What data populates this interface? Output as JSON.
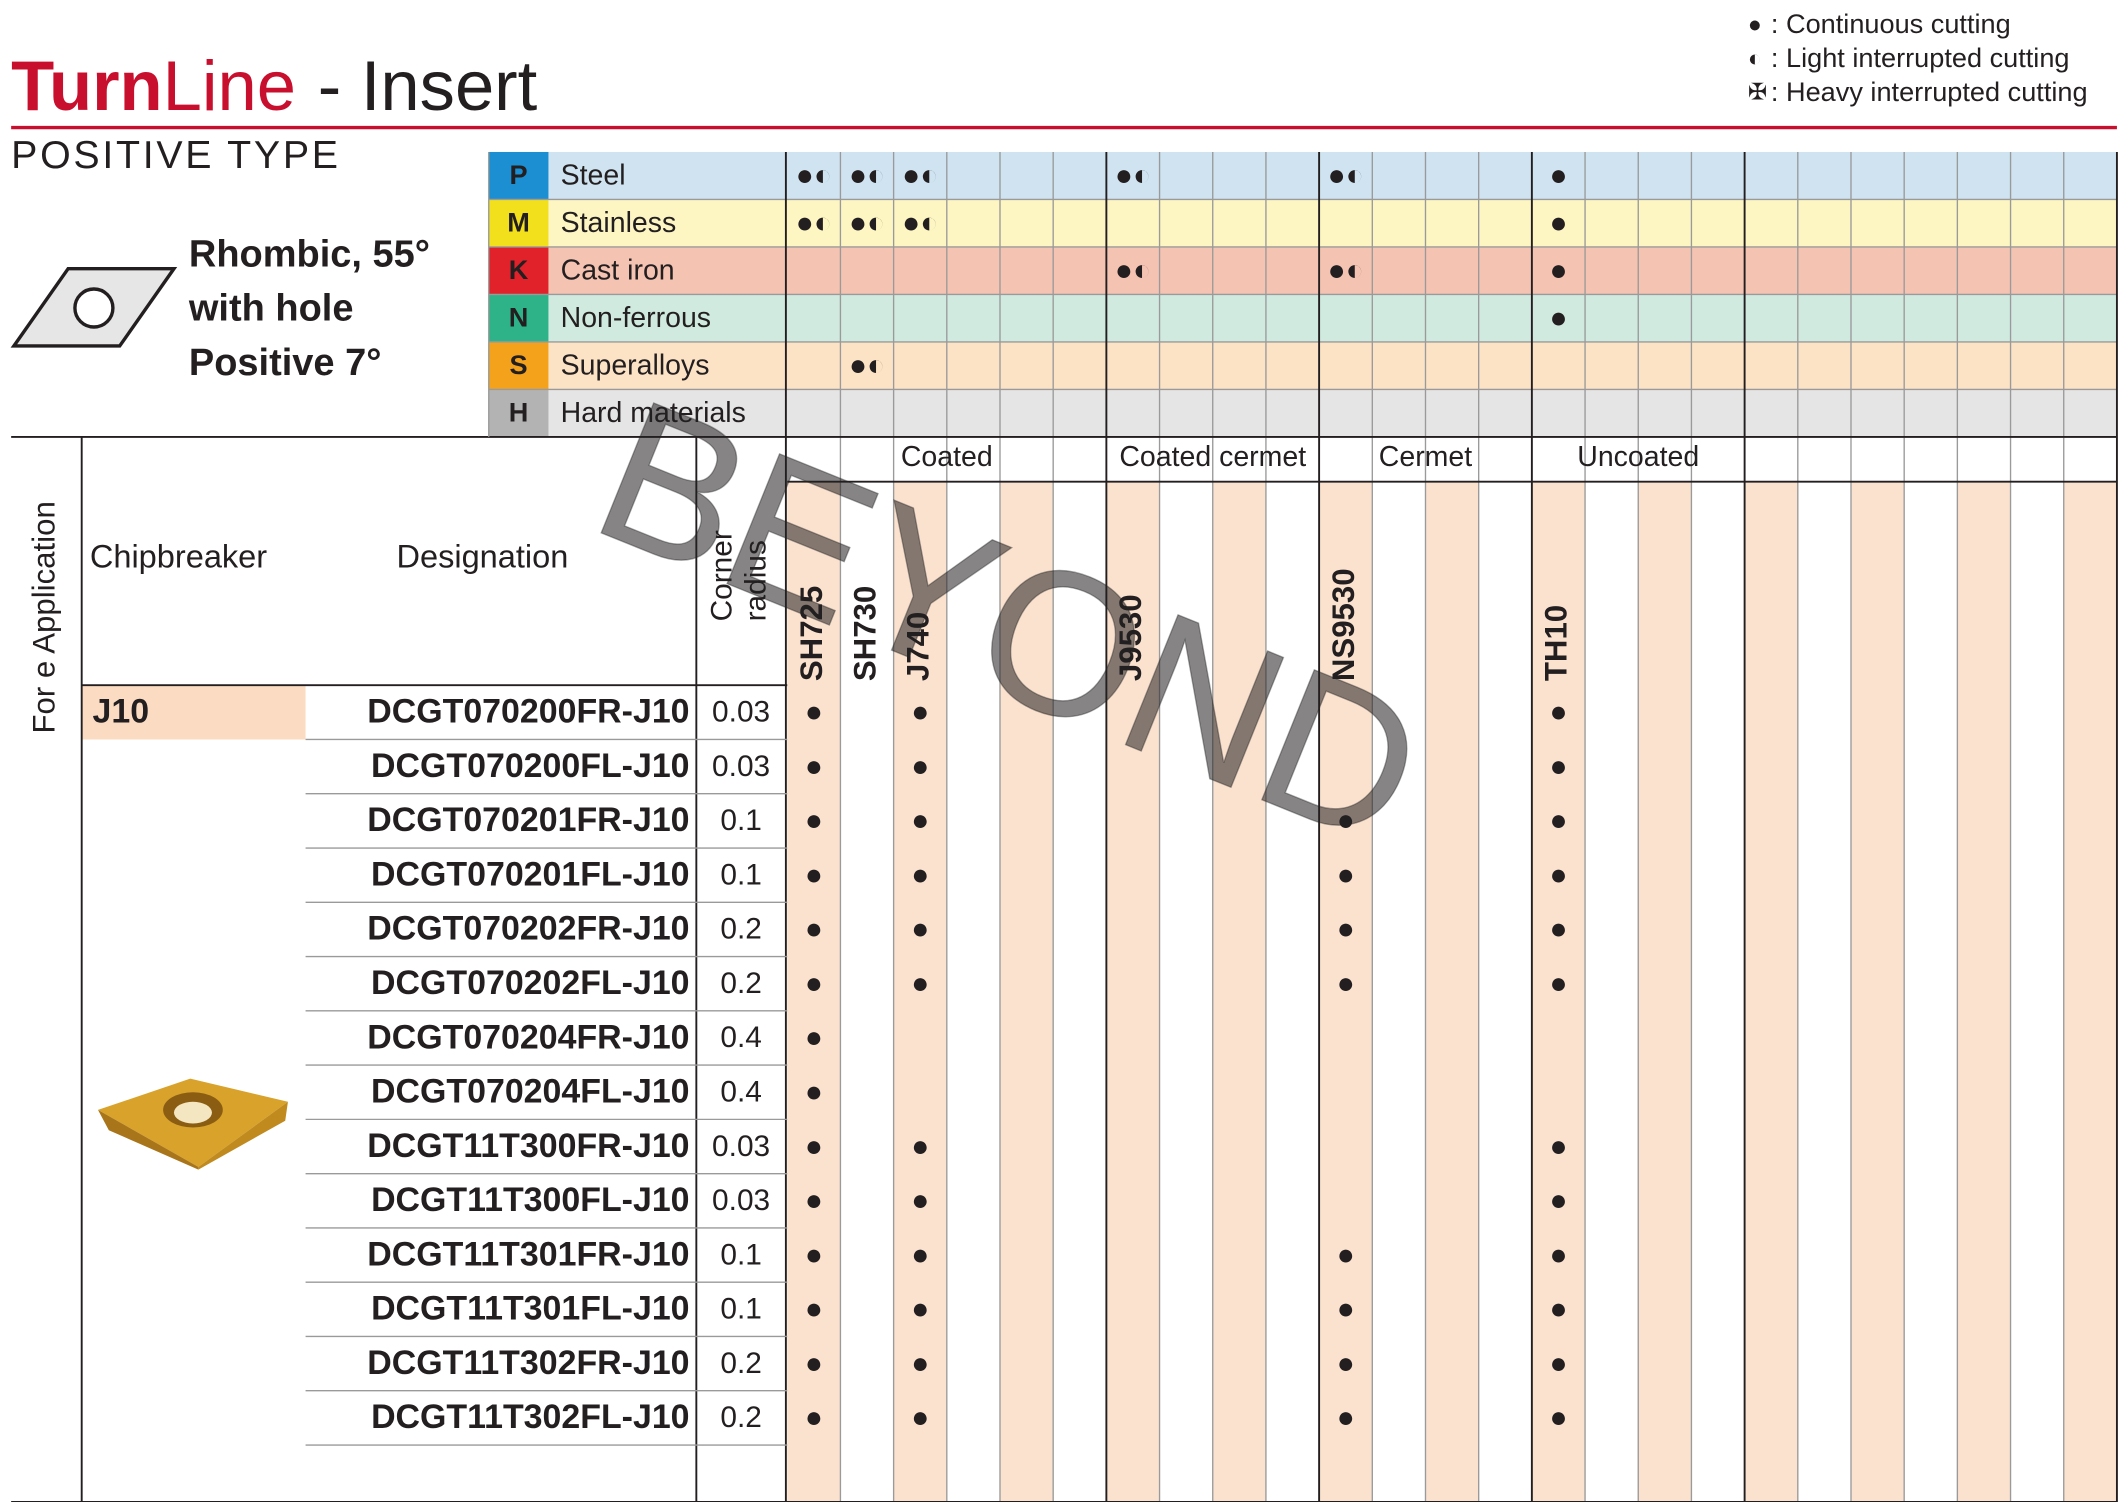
{
  "header": {
    "title_brand": "Turn",
    "title_line": "Line",
    "title_rest": "- Insert",
    "subtitle": "POSITIVE TYPE",
    "shape_lines": [
      "Rhombic, 55°",
      "with hole",
      "Positive 7°"
    ]
  },
  "legend": [
    {
      "symbol": "●",
      "text": ": Continuous cutting"
    },
    {
      "symbol": "◐",
      "text": ": Light interrupted cutting"
    },
    {
      "symbol": "✠",
      "text": ": Heavy interrupted cutting"
    }
  ],
  "materials": [
    {
      "letter": "P",
      "name": "Steel",
      "color": "#1b8fd2",
      "row_color": "#cfe3f1",
      "marks": [
        "●◐",
        "●◐",
        "●◐",
        null,
        null,
        null,
        "●◐",
        null,
        null,
        null,
        "●◐",
        null,
        null,
        null,
        "●",
        null,
        null,
        null,
        null,
        null,
        null,
        null,
        null,
        null,
        null
      ]
    },
    {
      "letter": "M",
      "name": "Stainless",
      "color": "#f3e01c",
      "row_color": "#fdf6c2",
      "marks": [
        "●◐",
        "●◐",
        "●◐",
        null,
        null,
        null,
        null,
        null,
        null,
        null,
        null,
        null,
        null,
        null,
        "●",
        null,
        null,
        null,
        null,
        null,
        null,
        null,
        null,
        null,
        null
      ]
    },
    {
      "letter": "K",
      "name": "Cast iron",
      "color": "#e1222b",
      "row_color": "#f5c3b2",
      "marks": [
        null,
        null,
        null,
        null,
        null,
        null,
        "●◐",
        null,
        null,
        null,
        "●◐",
        null,
        null,
        null,
        "●",
        null,
        null,
        null,
        null,
        null,
        null,
        null,
        null,
        null,
        null
      ]
    },
    {
      "letter": "N",
      "name": "Non-ferrous",
      "color": "#2eb389",
      "row_color": "#d0eadf",
      "marks": [
        null,
        null,
        null,
        null,
        null,
        null,
        null,
        null,
        null,
        null,
        null,
        null,
        null,
        null,
        "●",
        null,
        null,
        null,
        null,
        null,
        null,
        null,
        null,
        null,
        null
      ]
    },
    {
      "letter": "S",
      "name": "Superalloys",
      "color": "#f4a11c",
      "row_color": "#fde3c5",
      "marks": [
        null,
        "●◐",
        null,
        null,
        null,
        null,
        null,
        null,
        null,
        null,
        null,
        null,
        null,
        null,
        null,
        null,
        null,
        null,
        null,
        null,
        null,
        null,
        null,
        null,
        null
      ]
    },
    {
      "letter": "H",
      "name": "Hard materials",
      "color": "#b3b3b3",
      "row_color": "#e5e5e5",
      "marks": [
        null,
        null,
        null,
        null,
        null,
        null,
        null,
        null,
        null,
        null,
        null,
        null,
        null,
        null,
        null,
        null,
        null,
        null,
        null,
        null,
        null,
        null,
        null,
        null,
        null
      ]
    }
  ],
  "table": {
    "application_label": "For e  Application",
    "chipbreaker_header": "Chipbreaker",
    "designation_header": "Designation",
    "corner_radius_header": [
      "Corner",
      "radius"
    ],
    "groups": [
      "Coated",
      "Coated cermet",
      "Cermet",
      "Uncoated"
    ],
    "grades": [
      "SH725",
      "SH730",
      "J740",
      null,
      null,
      null,
      "J9530",
      null,
      null,
      null,
      "NS9530",
      null,
      null,
      null,
      "TH10",
      null,
      null,
      null,
      null,
      null,
      null,
      null,
      null,
      null,
      null
    ],
    "chipbreaker": "J10",
    "rows": [
      {
        "designation": "DCGT070200FR-J10",
        "radius": "0.03",
        "marks": [
          "●",
          null,
          "●",
          null,
          null,
          null,
          null,
          null,
          null,
          null,
          null,
          null,
          null,
          null,
          "●",
          null,
          null,
          null,
          null,
          null,
          null,
          null,
          null,
          null,
          null
        ]
      },
      {
        "designation": "DCGT070200FL-J10",
        "radius": "0.03",
        "marks": [
          "●",
          null,
          "●",
          null,
          null,
          null,
          null,
          null,
          null,
          null,
          null,
          null,
          null,
          null,
          "●",
          null,
          null,
          null,
          null,
          null,
          null,
          null,
          null,
          null,
          null
        ]
      },
      {
        "designation": "DCGT070201FR-J10",
        "radius": "0.1",
        "marks": [
          "●",
          null,
          "●",
          null,
          null,
          null,
          null,
          null,
          null,
          null,
          "●",
          null,
          null,
          null,
          "●",
          null,
          null,
          null,
          null,
          null,
          null,
          null,
          null,
          null,
          null
        ]
      },
      {
        "designation": "DCGT070201FL-J10",
        "radius": "0.1",
        "marks": [
          "●",
          null,
          "●",
          null,
          null,
          null,
          null,
          null,
          null,
          null,
          "●",
          null,
          null,
          null,
          "●",
          null,
          null,
          null,
          null,
          null,
          null,
          null,
          null,
          null,
          null
        ]
      },
      {
        "designation": "DCGT070202FR-J10",
        "radius": "0.2",
        "marks": [
          "●",
          null,
          "●",
          null,
          null,
          null,
          null,
          null,
          null,
          null,
          "●",
          null,
          null,
          null,
          "●",
          null,
          null,
          null,
          null,
          null,
          null,
          null,
          null,
          null,
          null
        ]
      },
      {
        "designation": "DCGT070202FL-J10",
        "radius": "0.2",
        "marks": [
          "●",
          null,
          "●",
          null,
          null,
          null,
          null,
          null,
          null,
          null,
          "●",
          null,
          null,
          null,
          "●",
          null,
          null,
          null,
          null,
          null,
          null,
          null,
          null,
          null,
          null
        ]
      },
      {
        "designation": "DCGT070204FR-J10",
        "radius": "0.4",
        "marks": [
          "●",
          null,
          null,
          null,
          null,
          null,
          null,
          null,
          null,
          null,
          null,
          null,
          null,
          null,
          null,
          null,
          null,
          null,
          null,
          null,
          null,
          null,
          null,
          null,
          null
        ]
      },
      {
        "designation": "DCGT070204FL-J10",
        "radius": "0.4",
        "marks": [
          "●",
          null,
          null,
          null,
          null,
          null,
          null,
          null,
          null,
          null,
          null,
          null,
          null,
          null,
          null,
          null,
          null,
          null,
          null,
          null,
          null,
          null,
          null,
          null,
          null
        ]
      },
      {
        "designation": "DCGT11T300FR-J10",
        "radius": "0.03",
        "marks": [
          "●",
          null,
          "●",
          null,
          null,
          null,
          null,
          null,
          null,
          null,
          null,
          null,
          null,
          null,
          "●",
          null,
          null,
          null,
          null,
          null,
          null,
          null,
          null,
          null,
          null
        ]
      },
      {
        "designation": "DCGT11T300FL-J10",
        "radius": "0.03",
        "marks": [
          "●",
          null,
          "●",
          null,
          null,
          null,
          null,
          null,
          null,
          null,
          null,
          null,
          null,
          null,
          "●",
          null,
          null,
          null,
          null,
          null,
          null,
          null,
          null,
          null,
          null
        ]
      },
      {
        "designation": "DCGT11T301FR-J10",
        "radius": "0.1",
        "marks": [
          "●",
          null,
          "●",
          null,
          null,
          null,
          null,
          null,
          null,
          null,
          "●",
          null,
          null,
          null,
          "●",
          null,
          null,
          null,
          null,
          null,
          null,
          null,
          null,
          null,
          null
        ]
      },
      {
        "designation": "DCGT11T301FL-J10",
        "radius": "0.1",
        "marks": [
          "●",
          null,
          "●",
          null,
          null,
          null,
          null,
          null,
          null,
          null,
          "●",
          null,
          null,
          null,
          "●",
          null,
          null,
          null,
          null,
          null,
          null,
          null,
          null,
          null,
          null
        ]
      },
      {
        "designation": "DCGT11T302FR-J10",
        "radius": "0.2",
        "marks": [
          "●",
          null,
          "●",
          null,
          null,
          null,
          null,
          null,
          null,
          null,
          "●",
          null,
          null,
          null,
          "●",
          null,
          null,
          null,
          null,
          null,
          null,
          null,
          null,
          null,
          null
        ]
      },
      {
        "designation": "DCGT11T302FL-J10",
        "radius": "0.2",
        "marks": [
          "●",
          null,
          "●",
          null,
          null,
          null,
          null,
          null,
          null,
          null,
          "●",
          null,
          null,
          null,
          "●",
          null,
          null,
          null,
          null,
          null,
          null,
          null,
          null,
          null,
          null
        ]
      }
    ]
  },
  "watermark": "BEYOND"
}
